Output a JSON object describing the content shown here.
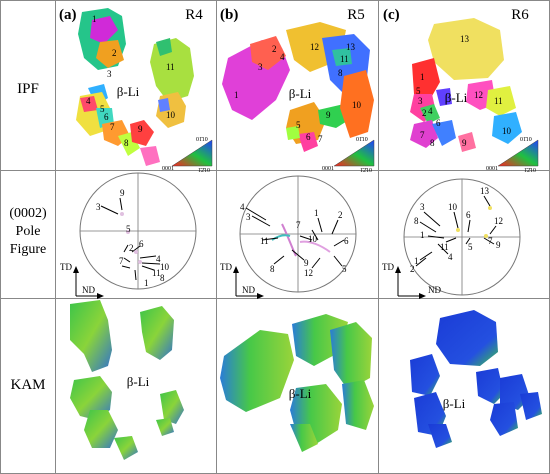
{
  "columns": [
    {
      "panel_letter": "(a)",
      "sample": "R4"
    },
    {
      "panel_letter": "(b)",
      "sample": "R5"
    },
    {
      "panel_letter": "(c)",
      "sample": "R6"
    }
  ],
  "rows": {
    "ipf": "IPF",
    "pole_line1": "(0002)",
    "pole_line2": "Pole",
    "pole_line3": "Figure",
    "kam": "KAM"
  },
  "phase_label": "β-Li",
  "axis_labels": {
    "td": "TD",
    "nd": "ND"
  },
  "ipf_key": {
    "corner_0001": "0001",
    "corner_0110": "01̄10",
    "corner_1210": "1̄2̄10"
  },
  "grain_numbers": {
    "r4": [
      "1",
      "2",
      "3",
      "4",
      "5",
      "6",
      "7",
      "8",
      "9",
      "10",
      "11"
    ],
    "r5": [
      "1",
      "2",
      "3",
      "4",
      "5",
      "6",
      "7",
      "8",
      "9",
      "10",
      "11",
      "12",
      "13"
    ],
    "r6": [
      "1",
      "2",
      "3",
      "4",
      "5",
      "6",
      "7",
      "8",
      "9",
      "10",
      "11",
      "12",
      "13"
    ]
  },
  "pole_numbers": {
    "r4": [
      "3",
      "9",
      "5",
      "2",
      "6",
      "7",
      "4",
      "10",
      "11",
      "8",
      "1"
    ],
    "r5": [
      "4",
      "3",
      "7",
      "1",
      "2",
      "11",
      "10",
      "6",
      "9",
      "8",
      "12",
      "5"
    ],
    "r6": [
      "13",
      "3",
      "10",
      "6",
      "12",
      "8",
      "1",
      "11",
      "5",
      "7",
      "9",
      "4",
      "1",
      "2"
    ]
  },
  "colors": {
    "kam_low": "#1a3bd6",
    "kam_mid": "#3cc44a",
    "kam_high": "#e8e83a",
    "grid": "#888888"
  }
}
